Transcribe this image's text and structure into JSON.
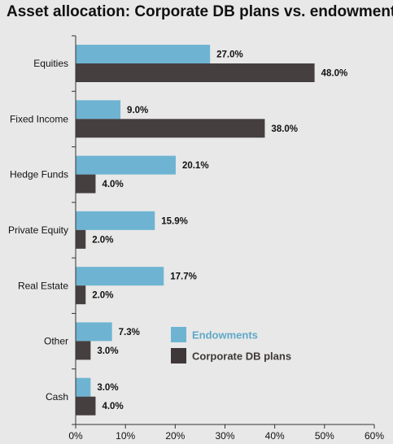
{
  "chart_data": {
    "type": "bar",
    "orientation": "horizontal",
    "title": "Asset allocation: Corporate DB plans vs. endowments",
    "xlabel": "",
    "ylabel": "",
    "categories": [
      "Equities",
      "Fixed Income",
      "Hedge Funds",
      "Private Equity",
      "Real Estate",
      "Other",
      "Cash"
    ],
    "series": [
      {
        "name": "Endowments",
        "color": "#6eb4d2",
        "values": [
          27.0,
          9.0,
          20.1,
          15.9,
          17.7,
          7.3,
          3.0
        ]
      },
      {
        "name": "Corporate DB plans",
        "color": "#463f3f",
        "values": [
          48.0,
          38.0,
          4.0,
          2.0,
          2.0,
          3.0,
          4.0
        ]
      }
    ],
    "xlim": [
      0,
      60
    ],
    "xticks": [
      0,
      10,
      20,
      30,
      40,
      50,
      60
    ],
    "tick_suffix": "%",
    "value_suffix": "%",
    "grid": false,
    "legend_position": "lower-right",
    "legend_colors": [
      "#6eb4d2",
      "#3f3838"
    ]
  }
}
